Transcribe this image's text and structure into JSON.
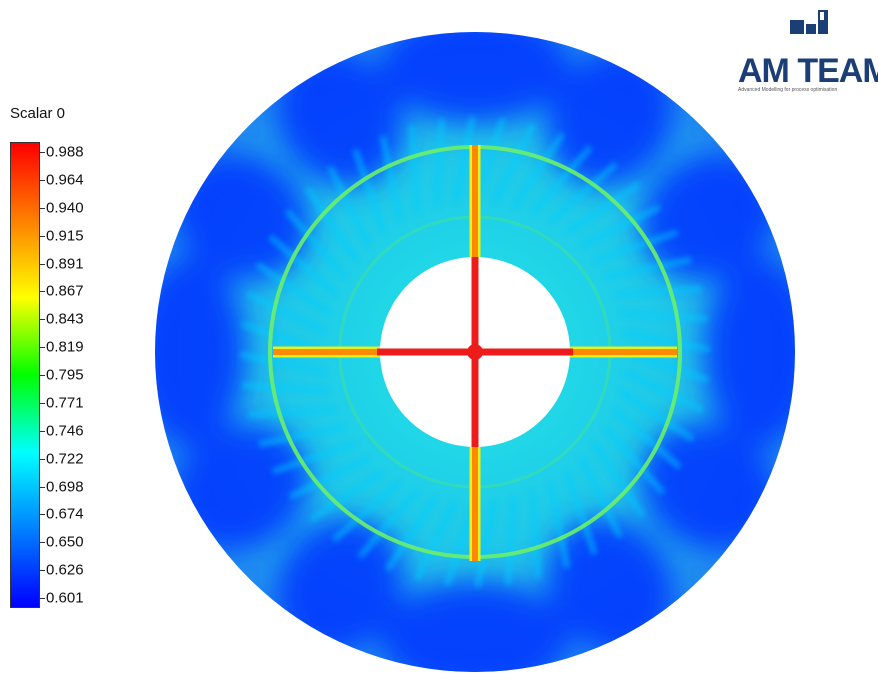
{
  "chart_data": {
    "type": "heatmap",
    "title": "",
    "legend": {
      "title": "Scalar 0",
      "placement": "left",
      "range": [
        0.601,
        0.988
      ],
      "tick_labels": [
        "0.988",
        "0.964",
        "0.940",
        "0.915",
        "0.891",
        "0.867",
        "0.843",
        "0.819",
        "0.795",
        "0.771",
        "0.746",
        "0.722",
        "0.698",
        "0.674",
        "0.650",
        "0.626",
        "0.601"
      ],
      "colormap": [
        "#0000ff",
        "#0080ff",
        "#00ffff",
        "#00ff00",
        "#ffff00",
        "#ff8000",
        "#ff0000"
      ]
    },
    "domain": "annular disk with central hole and cross-shaped high-value ribs",
    "field_levels": {
      "background": 0.674,
      "dark_patches": 0.626,
      "outer_ring": 0.843,
      "ribs_outer": 0.891,
      "ribs_inner": 0.988
    }
  },
  "logo": {
    "text_primary": "AM",
    "text_secondary": "TEAM",
    "subtitle": "Advanced Modelling for process optimisation"
  },
  "colors": {
    "logo_blue": "#1b3e77"
  }
}
